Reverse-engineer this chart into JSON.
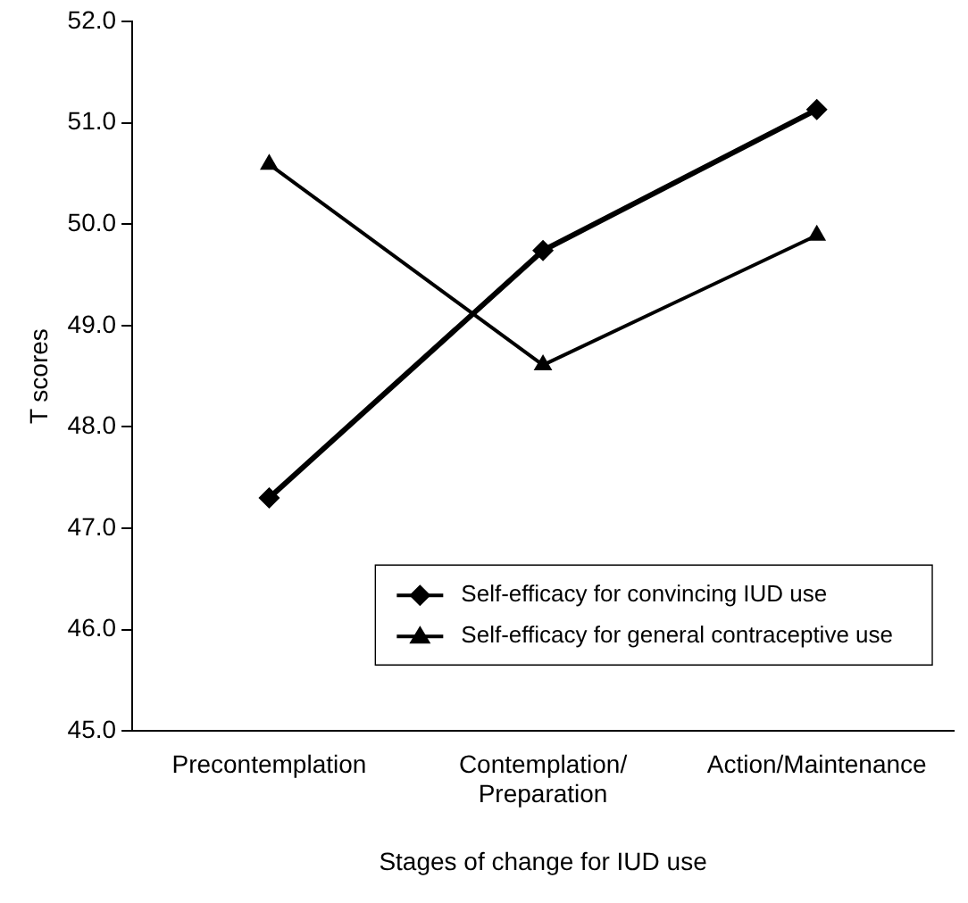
{
  "chart_data": {
    "type": "line",
    "xlabel": "Stages of change for IUD use",
    "ylabel": "T scores",
    "categories": [
      "Precontemplation",
      "Contemplation/\nPreparation",
      "Action/Maintenance"
    ],
    "series": [
      {
        "name": "Self-efficacy for convincing IUD use",
        "color": "#000000",
        "values": [
          47.3,
          49.74,
          51.13
        ],
        "marker": "diamond"
      },
      {
        "name": "Self-efficacy for general contraceptive use",
        "color": "#000000",
        "values": [
          50.59,
          48.61,
          49.89
        ],
        "marker": "triangle"
      }
    ],
    "ylim": [
      45,
      52
    ],
    "yticks": [
      {
        "value": 45,
        "label": "45.0"
      },
      {
        "value": 46,
        "label": "46.0"
      },
      {
        "value": 47,
        "label": "47.0"
      },
      {
        "value": 48,
        "label": "48.0"
      },
      {
        "value": 49,
        "label": "49.0"
      },
      {
        "value": 50,
        "label": "50.0"
      },
      {
        "value": 51,
        "label": "51.0"
      },
      {
        "value": 52,
        "label": "52.0"
      }
    ],
    "grid": false,
    "legend": "bottom right"
  }
}
